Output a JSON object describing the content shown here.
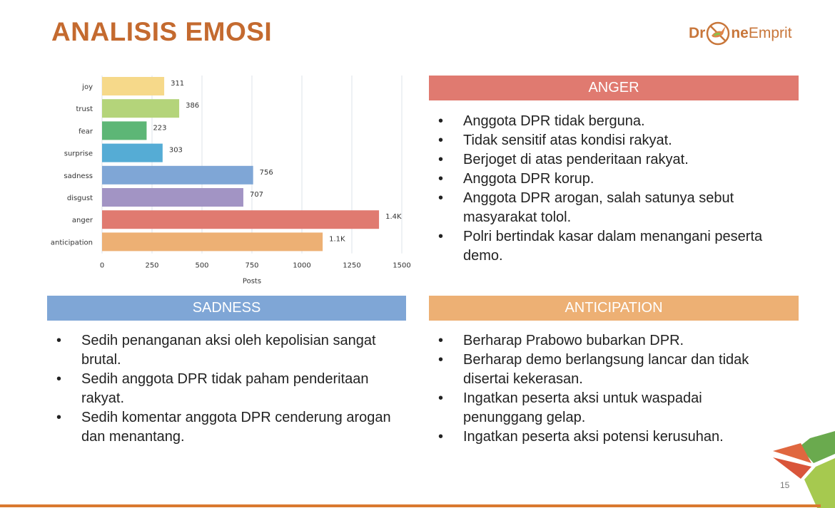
{
  "title": "ANALISIS EMOSI",
  "logo": {
    "text": "DroneEmprit",
    "part1": "Dr",
    "part2": "ne",
    "part3": "Emprit"
  },
  "chart_data": {
    "type": "bar",
    "orientation": "horizontal",
    "categories": [
      "joy",
      "trust",
      "fear",
      "surprise",
      "sadness",
      "disgust",
      "anger",
      "anticipation"
    ],
    "values": [
      311,
      386,
      223,
      303,
      756,
      707,
      1386,
      1104
    ],
    "data_labels": [
      "311",
      "386",
      "223",
      "303",
      "756",
      "707",
      "1.4K",
      "1.1K"
    ],
    "colors": [
      "#f6d98a",
      "#b4d47a",
      "#5db676",
      "#55acd5",
      "#7fa6d6",
      "#a294c4",
      "#e07a70",
      "#edb074"
    ],
    "xlabel": "Posts",
    "ylabel": "",
    "xlim": [
      0,
      1500
    ],
    "xticks": [
      "0",
      "250",
      "500",
      "750",
      "1000",
      "1250",
      "1500"
    ],
    "grid": true
  },
  "anger": {
    "title": "ANGER",
    "color": "#e07a70",
    "items": [
      "Anggota DPR tidak berguna.",
      "Tidak sensitif atas kondisi rakyat.",
      "Berjoget di atas penderitaan rakyat.",
      "Anggota DPR korup.",
      "Anggota DPR arogan, salah satunya sebut masyarakat tolol.",
      "Polri bertindak kasar dalam menangani peserta demo."
    ]
  },
  "sadness": {
    "title": "SADNESS",
    "color": "#7fa6d6",
    "items": [
      "Sedih penanganan aksi oleh kepolisian sangat brutal.",
      "Sedih anggota DPR tidak paham penderitaan rakyat.",
      "Sedih komentar anggota DPR cenderung arogan dan menantang."
    ]
  },
  "anticipation": {
    "title": "ANTICIPATION",
    "color": "#edb074",
    "items": [
      "Berharap Prabowo bubarkan DPR.",
      "Berharap demo berlangsung lancar dan tidak disertai kekerasan.",
      "Ingatkan peserta aksi untuk waspadai penunggang gelap.",
      "Ingatkan peserta aksi potensi kerusuhan."
    ]
  },
  "page_number": "15"
}
